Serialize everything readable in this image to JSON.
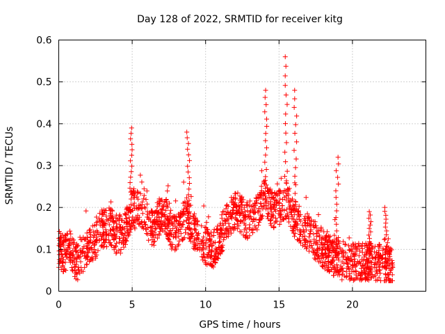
{
  "colors": {
    "series": "#ff0000",
    "grid": "#a0a0a0",
    "axis": "#000000"
  },
  "chart_data": {
    "type": "scatter",
    "title": "Day 128 of 2022, SRMTID for receiver kitg",
    "xlabel": "GPS time / hours",
    "ylabel": "SRMTID / TECUs",
    "xlim": [
      0,
      25
    ],
    "ylim": [
      0,
      0.6
    ],
    "xticks": [
      0,
      5,
      10,
      15,
      20
    ],
    "yticks": [
      0,
      0.1,
      0.2,
      0.3,
      0.4,
      0.5,
      0.6
    ],
    "xtick_labels": [
      "0",
      "5",
      "10",
      "15",
      "20"
    ],
    "ytick_labels": [
      "0",
      "0.1",
      "0.2",
      "0.3",
      "0.4",
      "0.5",
      "0.6"
    ],
    "grid": true,
    "marker": "plus",
    "series": [
      {
        "name": "SRMTID",
        "x_start": 0.0,
        "x_step": 0.25,
        "typical_values": [
          0.1,
          0.09,
          0.09,
          0.1,
          0.08,
          0.07,
          0.08,
          0.09,
          0.1,
          0.11,
          0.12,
          0.14,
          0.15,
          0.15,
          0.16,
          0.14,
          0.13,
          0.13,
          0.14,
          0.17,
          0.2,
          0.19,
          0.2,
          0.19,
          0.17,
          0.15,
          0.15,
          0.17,
          0.19,
          0.18,
          0.16,
          0.14,
          0.14,
          0.15,
          0.17,
          0.18,
          0.16,
          0.14,
          0.12,
          0.12,
          0.11,
          0.1,
          0.1,
          0.11,
          0.13,
          0.15,
          0.17,
          0.18,
          0.19,
          0.19,
          0.18,
          0.17,
          0.17,
          0.18,
          0.19,
          0.21,
          0.23,
          0.21,
          0.2,
          0.19,
          0.2,
          0.21,
          0.22,
          0.2,
          0.18,
          0.16,
          0.15,
          0.14,
          0.14,
          0.13,
          0.12,
          0.11,
          0.1,
          0.09,
          0.09,
          0.08,
          0.08,
          0.07,
          0.07,
          0.07,
          0.07,
          0.07,
          0.07,
          0.07,
          0.07,
          0.07,
          0.07,
          0.07,
          0.06,
          0.06,
          0.06,
          0.06
        ],
        "peaks": [
          {
            "x": 4.95,
            "y": 0.39
          },
          {
            "x": 8.8,
            "y": 0.38
          },
          {
            "x": 14.1,
            "y": 0.48
          },
          {
            "x": 15.45,
            "y": 0.56
          },
          {
            "x": 16.1,
            "y": 0.48
          },
          {
            "x": 18.95,
            "y": 0.32
          },
          {
            "x": 21.2,
            "y": 0.19
          },
          {
            "x": 22.3,
            "y": 0.2
          }
        ]
      }
    ]
  }
}
